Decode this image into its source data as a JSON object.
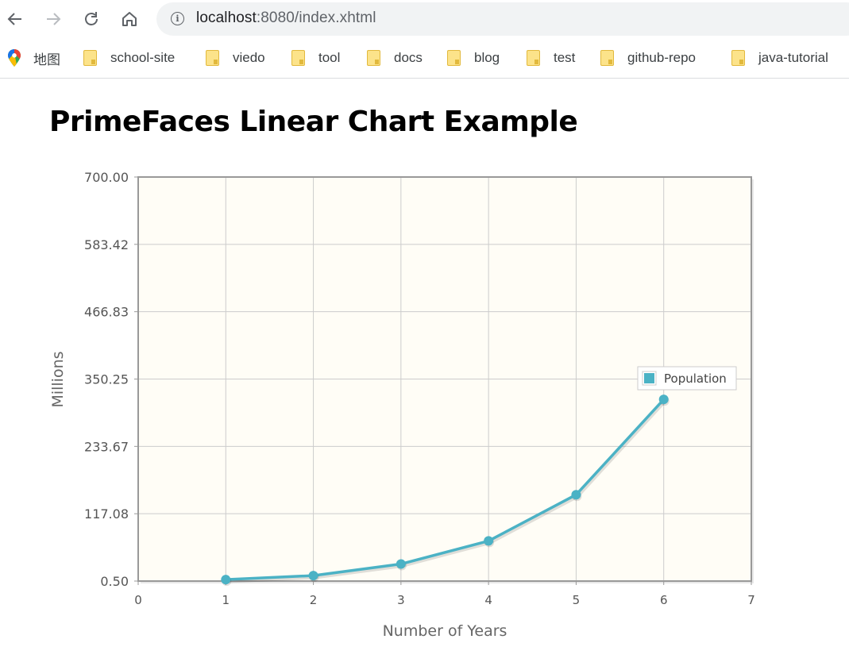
{
  "browser": {
    "url_host": "localhost",
    "url_path": ":8080/index.xhtml",
    "icons": {
      "back": "arrow-left-icon",
      "forward": "arrow-right-icon",
      "reload": "reload-icon",
      "home": "home-icon",
      "info": "info-icon"
    }
  },
  "bookmarks": [
    {
      "label": "地图",
      "icon": "maps-icon"
    },
    {
      "label": "school-site",
      "icon": "folder-icon"
    },
    {
      "label": "viedo",
      "icon": "folder-icon"
    },
    {
      "label": "tool",
      "icon": "folder-icon"
    },
    {
      "label": "docs",
      "icon": "folder-icon"
    },
    {
      "label": "blog",
      "icon": "folder-icon"
    },
    {
      "label": "test",
      "icon": "folder-icon"
    },
    {
      "label": "github-repo",
      "icon": "folder-icon"
    },
    {
      "label": "java-tutorial",
      "icon": "folder-icon"
    }
  ],
  "page": {
    "title": "PrimeFaces Linear Chart Example"
  },
  "chart_data": {
    "type": "line",
    "title": "",
    "xlabel": "Number of Years",
    "ylabel": "Millions",
    "x": [
      1,
      2,
      3,
      4,
      5,
      6
    ],
    "x_ticks": [
      "0",
      "1",
      "2",
      "3",
      "4",
      "5",
      "6",
      "7"
    ],
    "xlim": [
      0,
      7
    ],
    "y_ticks": [
      "0.50",
      "117.08",
      "233.67",
      "350.25",
      "466.83",
      "583.42",
      "700.00"
    ],
    "ylim": [
      0.5,
      700
    ],
    "series": [
      {
        "name": "Population",
        "values": [
          3,
          10,
          30,
          70,
          150,
          315
        ],
        "color": "#4bb2c5"
      }
    ],
    "plot_background": "#fffdf6",
    "grid": true,
    "legend": "right"
  }
}
